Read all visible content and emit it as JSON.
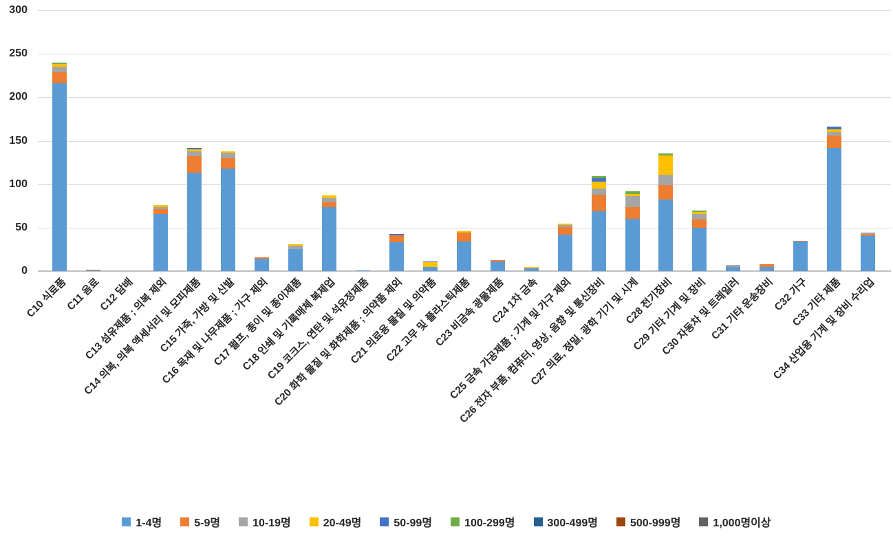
{
  "chart_data": {
    "type": "bar",
    "stacked": true,
    "title": "",
    "xlabel": "",
    "ylabel": "",
    "ylim": [
      0,
      300
    ],
    "y_ticks": [
      0,
      50,
      100,
      150,
      200,
      250,
      300
    ],
    "grid": "horizontal",
    "legend_position": "bottom",
    "background_color": "#FFFFFF",
    "gridline_color": "#D9D9D9",
    "axis_text_color": "#262626",
    "categories": [
      "C10 식료품",
      "C11 음료",
      "C12 담배",
      "C13 섬유제품 ; 의복 제외",
      "C14 의복, 의복 액세서리 및 모피제품",
      "C15 가죽, 가방 및 신발",
      "C16 목재 및 나무제품 ; 가구 제외",
      "C17 펄프, 종이 및 종이제품",
      "C18 인쇄 및 기록매체 복제업",
      "C19 코크스, 연탄 및 석유정제품",
      "C20 화학 물질 및 화학제품 ; 의약품 제외",
      "C21 의료용 물질 및 의약품",
      "C22 고무 및 플라스틱제품",
      "C23 비금속 광물제품",
      "C24 1차 금속",
      "C25 금속 가공제품 ; 기계 및 가구 제외",
      "C26 전자 부품, 컴퓨터, 영상, 음향 및 통신장비",
      "C27 의료, 정밀, 광학 기기 및 시계",
      "C28 전기장비",
      "C29 기타 기계 및 장비",
      "C30 자동차 및 트레일러",
      "C31 기타 운송장비",
      "C32 가구",
      "C33 기타 제품",
      "C34 산업용 기계 및 장비 수리업"
    ],
    "series": [
      {
        "name": "1-4명",
        "color": "#5B9BD5",
        "values": [
          216,
          1,
          0,
          66,
          113,
          118,
          14,
          25,
          74,
          1,
          33,
          5,
          34,
          11,
          3,
          42,
          69,
          60,
          82,
          50,
          5,
          5,
          34,
          142,
          40
        ]
      },
      {
        "name": "5-9명",
        "color": "#ED7D31",
        "values": [
          13,
          1,
          0,
          5,
          19,
          12,
          2,
          0,
          5,
          0,
          8,
          0,
          10,
          2,
          0,
          9,
          19,
          14,
          17,
          9,
          0,
          3,
          1,
          14,
          2
        ]
      },
      {
        "name": "10-19명",
        "color": "#A5A5A5",
        "values": [
          6,
          0,
          0,
          3,
          6,
          6,
          0,
          4,
          5,
          0,
          0,
          0,
          0,
          0,
          0,
          2,
          7,
          12,
          12,
          7,
          2,
          0,
          0,
          4,
          2
        ]
      },
      {
        "name": "20-49명",
        "color": "#FFC000",
        "values": [
          3,
          0,
          0,
          2,
          2,
          2,
          0,
          2,
          3,
          0,
          0,
          5,
          2,
          0,
          2,
          2,
          8,
          3,
          22,
          2,
          0,
          0,
          0,
          3,
          0
        ]
      },
      {
        "name": "50-99명",
        "color": "#4472C4",
        "values": [
          0,
          0,
          0,
          0,
          2,
          0,
          0,
          0,
          0,
          0,
          2,
          1,
          0,
          0,
          0,
          0,
          4,
          0,
          0,
          0,
          0,
          0,
          0,
          3,
          0
        ]
      },
      {
        "name": "100-299명",
        "color": "#70AD47",
        "values": [
          2,
          0,
          0,
          0,
          0,
          0,
          0,
          0,
          0,
          0,
          0,
          0,
          0,
          0,
          0,
          0,
          2,
          3,
          2,
          2,
          0,
          0,
          0,
          0,
          0
        ]
      },
      {
        "name": "300-499명",
        "color": "#255E91",
        "values": [
          0,
          0,
          0,
          0,
          0,
          0,
          0,
          0,
          0,
          0,
          0,
          0,
          0,
          0,
          0,
          0,
          0,
          0,
          0,
          0,
          0,
          0,
          0,
          0,
          0
        ]
      },
      {
        "name": "500-999명",
        "color": "#9E480E",
        "values": [
          0,
          0,
          0,
          0,
          0,
          0,
          0,
          0,
          0,
          0,
          0,
          0,
          0,
          0,
          0,
          0,
          0,
          0,
          0,
          0,
          0,
          0,
          0,
          0,
          0
        ]
      },
      {
        "name": "1,000명이상",
        "color": "#636363",
        "values": [
          0,
          0,
          0,
          0,
          0,
          0,
          0,
          0,
          0,
          0,
          0,
          0,
          0,
          0,
          0,
          0,
          0,
          0,
          0,
          0,
          0,
          0,
          0,
          0,
          0
        ]
      }
    ]
  }
}
